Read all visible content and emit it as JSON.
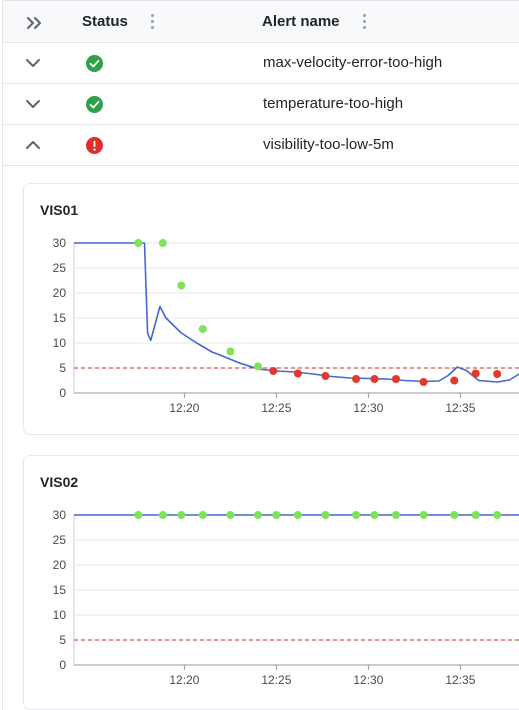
{
  "table": {
    "columns": [
      {
        "label": "Status"
      },
      {
        "label": "Alert name"
      }
    ],
    "rows": [
      {
        "expanded": false,
        "status": "ok",
        "alert_name": "max-velocity-error-too-high"
      },
      {
        "expanded": false,
        "status": "ok",
        "alert_name": "temperature-too-high"
      },
      {
        "expanded": true,
        "status": "error",
        "alert_name": "visibility-too-low-5m"
      }
    ]
  },
  "colors": {
    "ok": "#2ea14a",
    "error": "#dc2f2f",
    "line": "#4466d6",
    "dot_ok": "#7ee35a",
    "dot_alert": "#e0392e",
    "threshold": "#c9302c"
  },
  "charts": [
    {
      "title": "VIS01",
      "chart_data": {
        "type": "line",
        "title": "VIS01",
        "x_ticks": [
          "12:20",
          "12:25",
          "12:30",
          "12:35"
        ],
        "y_ticks": [
          0,
          5,
          10,
          15,
          20,
          25,
          30
        ],
        "ylim": [
          0,
          30
        ],
        "xlim": [
          "12:14",
          "12:39"
        ],
        "threshold": 5,
        "series": [
          {
            "type": "line",
            "points": [
              [
                "12:14:00",
                30
              ],
              [
                "12:17:50",
                30
              ],
              [
                "12:18:00",
                12
              ],
              [
                "12:18:10",
                10.5
              ],
              [
                "12:18:40",
                17.3
              ],
              [
                "12:19:00",
                15
              ],
              [
                "12:19:50",
                12
              ],
              [
                "12:20:40",
                10
              ],
              [
                "12:21:30",
                8.2
              ],
              [
                "12:22:00",
                7.5
              ],
              [
                "12:23:00",
                6
              ],
              [
                "12:24:00",
                4.8
              ],
              [
                "12:25:00",
                4.4
              ],
              [
                "12:26:00",
                4.2
              ],
              [
                "12:27:00",
                3.8
              ],
              [
                "12:28:00",
                3.3
              ],
              [
                "12:29:00",
                3.0
              ],
              [
                "12:30:00",
                2.9
              ],
              [
                "12:31:00",
                2.8
              ],
              [
                "12:32:00",
                2.5
              ],
              [
                "12:33:00",
                2.3
              ],
              [
                "12:33:50",
                2.4
              ],
              [
                "12:34:20",
                3.5
              ],
              [
                "12:34:50",
                5.2
              ],
              [
                "12:35:20",
                4.5
              ],
              [
                "12:36:00",
                2.5
              ],
              [
                "12:37:00",
                2.2
              ],
              [
                "12:37:40",
                2.6
              ],
              [
                "12:38:30",
                4.5
              ],
              [
                "12:38:50",
                7.3
              ],
              [
                "12:39:00",
                6.5
              ]
            ]
          },
          {
            "type": "scatter",
            "name": "ok",
            "points": [
              [
                "12:17:30",
                30
              ],
              [
                "12:18:50",
                30
              ],
              [
                "12:19:50",
                21.5
              ],
              [
                "12:21:00",
                12.8
              ],
              [
                "12:22:30",
                8.3
              ],
              [
                "12:24:00",
                5.3
              ]
            ]
          },
          {
            "type": "scatter",
            "name": "alert",
            "points": [
              [
                "12:24:50",
                4.4
              ],
              [
                "12:26:10",
                3.9
              ],
              [
                "12:27:40",
                3.4
              ],
              [
                "12:29:20",
                2.8
              ],
              [
                "12:30:20",
                2.8
              ],
              [
                "12:31:30",
                2.8
              ],
              [
                "12:33:00",
                2.2
              ],
              [
                "12:34:40",
                2.5
              ],
              [
                "12:35:50",
                3.9
              ],
              [
                "12:37:00",
                3.8
              ],
              [
                "12:38:30",
                2.3
              ]
            ]
          }
        ]
      }
    },
    {
      "title": "VIS02",
      "chart_data": {
        "type": "line",
        "title": "VIS02",
        "x_ticks": [
          "12:20",
          "12:25",
          "12:30",
          "12:35"
        ],
        "y_ticks": [
          0,
          5,
          10,
          15,
          20,
          25,
          30
        ],
        "ylim": [
          0,
          30
        ],
        "xlim": [
          "12:14",
          "12:39"
        ],
        "threshold": 5,
        "series": [
          {
            "type": "line",
            "points": [
              [
                "12:14:00",
                30
              ],
              [
                "12:39:00",
                30
              ]
            ]
          },
          {
            "type": "scatter",
            "name": "ok",
            "points": [
              [
                "12:17:30",
                30
              ],
              [
                "12:18:50",
                30
              ],
              [
                "12:19:50",
                30
              ],
              [
                "12:21:00",
                30
              ],
              [
                "12:22:30",
                30
              ],
              [
                "12:24:00",
                30
              ],
              [
                "12:25:00",
                30
              ],
              [
                "12:26:10",
                30
              ],
              [
                "12:27:40",
                30
              ],
              [
                "12:29:20",
                30
              ],
              [
                "12:30:20",
                30
              ],
              [
                "12:31:30",
                30
              ],
              [
                "12:33:00",
                30
              ],
              [
                "12:34:40",
                30
              ],
              [
                "12:35:50",
                30
              ],
              [
                "12:37:00",
                30
              ],
              [
                "12:38:30",
                30
              ]
            ]
          }
        ]
      }
    }
  ]
}
